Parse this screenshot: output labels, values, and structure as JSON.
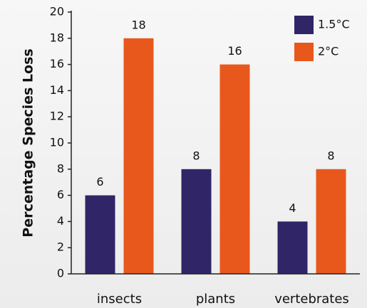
{
  "chart_data": {
    "type": "bar",
    "categories": [
      "insects",
      "plants",
      "vertebrates"
    ],
    "series": [
      {
        "name": "1.5°C",
        "color": "#2f2567",
        "values": [
          6,
          8,
          4
        ]
      },
      {
        "name": "2°C",
        "color": "#e8581c",
        "values": [
          18,
          16,
          8
        ]
      }
    ],
    "y_label": "Percentage Species Loss",
    "ylim": [
      0,
      20
    ],
    "yticks": [
      0,
      2,
      4,
      6,
      8,
      10,
      12,
      14,
      16,
      18,
      20
    ],
    "grid": false,
    "legend": "upper right"
  }
}
